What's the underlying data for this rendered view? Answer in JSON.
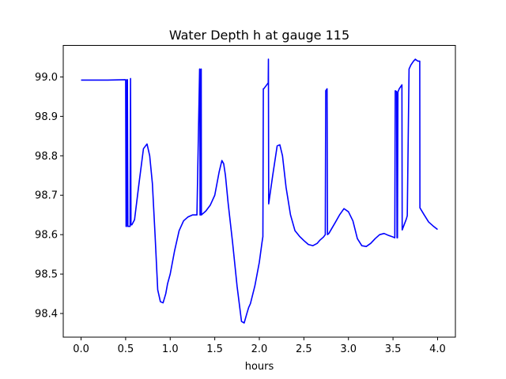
{
  "chart_data": {
    "type": "line",
    "title": "Water Depth h at gauge 115",
    "xlabel": "hours",
    "ylabel": "",
    "xlim": [
      -0.2,
      4.2
    ],
    "ylim": [
      98.34,
      99.08
    ],
    "xticks": [
      0.0,
      0.5,
      1.0,
      1.5,
      2.0,
      2.5,
      3.0,
      3.5,
      4.0
    ],
    "xtick_labels": [
      "0.0",
      "0.5",
      "1.0",
      "1.5",
      "2.0",
      "2.5",
      "3.0",
      "3.5",
      "4.0"
    ],
    "yticks": [
      98.4,
      98.5,
      98.6,
      98.7,
      98.8,
      98.9,
      99.0
    ],
    "ytick_labels": [
      "98.4",
      "98.5",
      "98.6",
      "98.7",
      "98.8",
      "98.9",
      "99.0"
    ],
    "grid": false,
    "series": [
      {
        "color": "#0000ff",
        "x": [
          0.0,
          0.3,
          0.5,
          0.505,
          0.51,
          0.515,
          0.52,
          0.525,
          0.53,
          0.535,
          0.545,
          0.55,
          0.555,
          0.56,
          0.57,
          0.6,
          0.65,
          0.7,
          0.74,
          0.77,
          0.8,
          0.83,
          0.86,
          0.89,
          0.92,
          0.95,
          0.97,
          1.0,
          1.05,
          1.1,
          1.15,
          1.2,
          1.25,
          1.3,
          1.33,
          1.333,
          1.335,
          1.345,
          1.348,
          1.35,
          1.4,
          1.45,
          1.5,
          1.55,
          1.58,
          1.6,
          1.62,
          1.65,
          1.7,
          1.75,
          1.8,
          1.83,
          1.86,
          1.88,
          1.9,
          1.95,
          2.0,
          2.03,
          2.04,
          2.045,
          2.05,
          2.1,
          2.102,
          2.105,
          2.15,
          2.2,
          2.23,
          2.26,
          2.3,
          2.35,
          2.4,
          2.45,
          2.5,
          2.55,
          2.6,
          2.65,
          2.68,
          2.72,
          2.74,
          2.745,
          2.76,
          2.765,
          2.78,
          2.85,
          2.9,
          2.95,
          3.0,
          3.05,
          3.1,
          3.15,
          3.2,
          3.25,
          3.3,
          3.35,
          3.4,
          3.45,
          3.5,
          3.52,
          3.525,
          3.54,
          3.545,
          3.55,
          3.555,
          3.57,
          3.6,
          3.603,
          3.65,
          3.66,
          3.68,
          3.7,
          3.73,
          3.75,
          3.78,
          3.8,
          3.802,
          3.85,
          3.9,
          3.95,
          4.0
        ],
        "y": [
          98.992,
          98.992,
          98.993,
          98.621,
          98.621,
          98.993,
          98.993,
          98.621,
          98.621,
          98.621,
          98.621,
          98.621,
          98.996,
          98.625,
          98.625,
          98.638,
          98.73,
          98.818,
          98.83,
          98.8,
          98.73,
          98.6,
          98.46,
          98.43,
          98.427,
          98.45,
          98.475,
          98.5,
          98.56,
          98.61,
          98.635,
          98.645,
          98.65,
          98.65,
          99.02,
          99.02,
          98.65,
          98.65,
          99.02,
          98.65,
          98.66,
          98.675,
          98.7,
          98.76,
          98.788,
          98.78,
          98.75,
          98.68,
          98.58,
          98.47,
          98.38,
          98.376,
          98.4,
          98.415,
          98.425,
          98.47,
          98.53,
          98.58,
          98.595,
          98.97,
          98.97,
          98.985,
          99.045,
          98.678,
          98.75,
          98.825,
          98.828,
          98.8,
          98.72,
          98.65,
          98.61,
          98.596,
          98.585,
          98.575,
          98.572,
          98.578,
          98.586,
          98.594,
          98.6,
          98.965,
          98.97,
          98.6,
          98.603,
          98.63,
          98.65,
          98.666,
          98.658,
          98.635,
          98.59,
          98.572,
          98.57,
          98.578,
          98.59,
          98.6,
          98.603,
          98.598,
          98.594,
          98.592,
          98.965,
          98.963,
          98.592,
          98.592,
          98.962,
          98.97,
          98.98,
          98.612,
          98.64,
          98.648,
          99.02,
          99.03,
          99.04,
          99.045,
          99.04,
          99.04,
          98.668,
          98.65,
          98.632,
          98.622,
          98.613
        ]
      }
    ]
  }
}
